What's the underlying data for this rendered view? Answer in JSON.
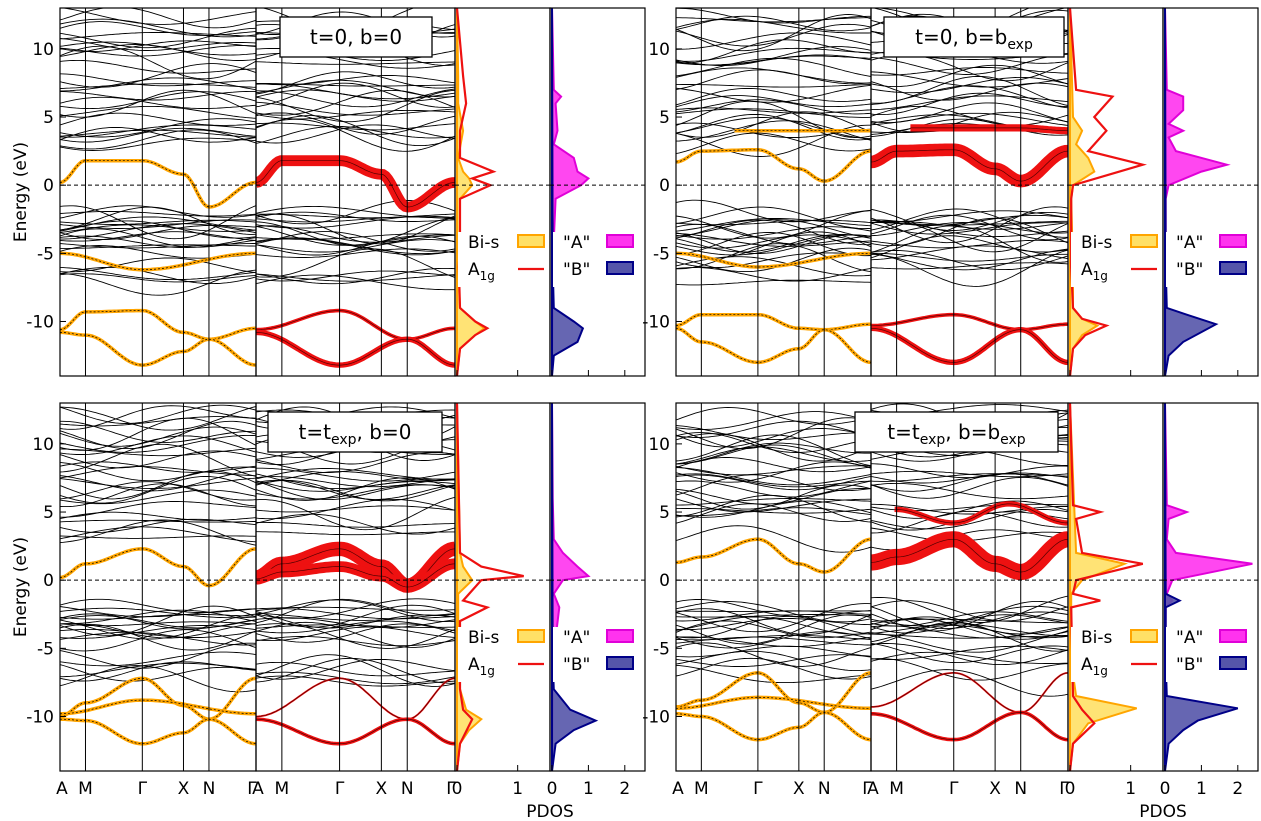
{
  "figure": {
    "ylabel": "Energy (eV)",
    "pdos_xlabel": "PDOS",
    "k_labels": [
      "A",
      "M",
      "Γ",
      "X",
      "N",
      "Γ"
    ],
    "k_positions": [
      0,
      0.13,
      0.42,
      0.63,
      0.76,
      1.0
    ],
    "energy_ticks": [
      -10,
      -5,
      0,
      5,
      10
    ],
    "energy_range": [
      -14,
      13
    ],
    "pdos1_ticks": [
      "0",
      "1"
    ],
    "pdos2_ticks": [
      "0",
      "1",
      "2"
    ],
    "legend": {
      "bi_s": "Bi-s",
      "a1g_main": "A",
      "a1g_sub": "1g",
      "a_site": "\"A\"",
      "b_site": "\"B\""
    },
    "colors": {
      "bi_s_line": "#ffa500",
      "bi_s_fill": "#ffe066",
      "a1g": "#ee1111",
      "a_site": "#ff33ee",
      "a_site_edge": "#e000d8",
      "b_site": "#5555aa",
      "b_site_edge": "#000088",
      "bands": "#000000"
    }
  },
  "chart_data": [
    {
      "type": "line",
      "panel": "top-left",
      "label_main": "t=0, b=0",
      "label": "t=0, b=0",
      "label_parts": [
        "t=0, b=0"
      ],
      "ylim": [
        -14,
        13
      ],
      "orange_bands": [
        {
          "k": [
            0,
            0.13,
            0.42,
            0.63,
            0.76,
            1.0
          ],
          "e": [
            0.2,
            1.8,
            1.8,
            0.8,
            -1.6,
            0.2
          ]
        },
        {
          "k": [
            0,
            0.13,
            0.42,
            0.63,
            0.76,
            1.0
          ],
          "e": [
            -10.6,
            -9.3,
            -9.2,
            -10.8,
            -11.3,
            -10.5
          ]
        },
        {
          "k": [
            0,
            0.13,
            0.42,
            0.63,
            0.76,
            1.0
          ],
          "e": [
            -10.8,
            -11.0,
            -13.2,
            -12.2,
            -11.3,
            -13.2
          ]
        },
        {
          "k": [
            0,
            0.42,
            1.0
          ],
          "e": [
            -5.0,
            -6.2,
            -5.0
          ]
        }
      ],
      "red_band_weight": [
        {
          "k": [
            0,
            0.13,
            0.42,
            0.63,
            0.76,
            1.0
          ],
          "e": [
            0.2,
            1.8,
            1.8,
            0.8,
            -1.6,
            0.2
          ],
          "w": 6
        },
        {
          "k": [
            0,
            0.42,
            0.76,
            1.0
          ],
          "e": [
            -10.6,
            -9.2,
            -11.3,
            -10.5
          ],
          "w": 2
        },
        {
          "k": [
            0,
            0.42,
            0.76,
            1.0
          ],
          "e": [
            -10.8,
            -13.2,
            -11.3,
            -13.2
          ],
          "w": 3
        }
      ],
      "pdos_bi_s": {
        "energy": [
          -14,
          -12,
          -11,
          -10.5,
          -10,
          -9,
          -6,
          -4,
          -1,
          0,
          0.5,
          1,
          2,
          4,
          6,
          8,
          13
        ],
        "value": [
          0,
          0.05,
          0.3,
          0.45,
          0.3,
          0.05,
          0.02,
          0.05,
          0.05,
          0.25,
          0.2,
          0.1,
          0.02,
          0.1,
          0.02,
          0.02,
          0
        ]
      },
      "pdos_a1g": {
        "energy": [
          -14,
          -12,
          -11,
          -10.5,
          -10,
          -9,
          -6,
          -4,
          -1,
          0,
          0.5,
          1,
          2,
          4,
          6,
          8,
          13
        ],
        "value": [
          0,
          0.05,
          0.3,
          0.5,
          0.3,
          0.05,
          0.03,
          0.05,
          0.05,
          0.55,
          0.25,
          0.6,
          0.05,
          0.05,
          0.15,
          0.1,
          0
        ]
      },
      "pdos_a": {
        "energy": [
          -14,
          -6,
          -4,
          -1,
          0,
          0.5,
          1,
          2,
          3,
          4,
          6,
          6.5,
          7,
          13
        ],
        "value": [
          0,
          0.02,
          0.05,
          0.1,
          0.8,
          1.0,
          0.7,
          0.6,
          0.05,
          0.15,
          0.1,
          0.25,
          0.05,
          0
        ]
      },
      "pdos_b": {
        "energy": [
          -14,
          -12.5,
          -11.5,
          -10.5,
          -10,
          -9,
          -6,
          13
        ],
        "value": [
          0,
          0.05,
          0.7,
          0.85,
          0.6,
          0.05,
          0.02,
          0
        ]
      }
    },
    {
      "type": "line",
      "panel": "top-right",
      "label_main": "t=0, b=b",
      "label": "t=0, b=bexp",
      "label_parts": [
        "t=0, b=b",
        "exp"
      ],
      "ylim": [
        -14,
        13
      ],
      "orange_bands": [
        {
          "k": [
            0,
            0.13,
            0.42,
            0.63,
            0.76,
            1.0
          ],
          "e": [
            1.7,
            2.5,
            2.6,
            1.2,
            0.3,
            2.5
          ]
        },
        {
          "k": [
            0,
            0.13,
            0.42,
            0.63,
            0.76,
            1.0
          ],
          "e": [
            -10.3,
            -9.5,
            -9.5,
            -10.5,
            -10.6,
            -10.2
          ]
        },
        {
          "k": [
            0,
            0.13,
            0.42,
            0.63,
            0.76,
            1.0
          ],
          "e": [
            -10.5,
            -11.5,
            -13.0,
            -12.0,
            -10.6,
            -13.0
          ]
        },
        {
          "k": [
            0,
            0.42,
            1.0
          ],
          "e": [
            -5.0,
            -6.0,
            -5.0
          ]
        },
        {
          "k": [
            0.3,
            0.42,
            1.0
          ],
          "e": [
            4.0,
            4.0,
            4.0
          ]
        }
      ],
      "red_band_weight": [
        {
          "k": [
            0,
            0.13,
            0.42,
            0.63,
            0.76,
            1.0
          ],
          "e": [
            1.7,
            2.5,
            2.6,
            1.2,
            0.3,
            2.5
          ],
          "w": 7
        },
        {
          "k": [
            0.2,
            0.42,
            0.76,
            1.0
          ],
          "e": [
            4.2,
            4.2,
            4.2,
            4.0
          ],
          "w": 4
        },
        {
          "k": [
            0,
            0.42,
            0.76,
            1.0
          ],
          "e": [
            -10.3,
            -9.5,
            -10.6,
            -10.2
          ],
          "w": 2
        },
        {
          "k": [
            0,
            0.42,
            0.76,
            1.0
          ],
          "e": [
            -10.5,
            -13.0,
            -10.6,
            -13.0
          ],
          "w": 3
        }
      ],
      "pdos_bi_s": {
        "energy": [
          -14,
          -12,
          -11,
          -10.3,
          -9.8,
          -9,
          -6,
          -1,
          0,
          1,
          2,
          3,
          4,
          5,
          13
        ],
        "value": [
          0,
          0.05,
          0.2,
          0.45,
          0.2,
          0.05,
          0.05,
          0.02,
          0.05,
          0.4,
          0.3,
          0.1,
          0.2,
          0.05,
          0
        ]
      },
      "pdos_a1g": {
        "energy": [
          -14,
          -12,
          -11,
          -10.3,
          -9.8,
          -9,
          -6,
          -1,
          0,
          1.5,
          2.5,
          4,
          5,
          6.5,
          7,
          13
        ],
        "value": [
          0,
          0.05,
          0.25,
          0.6,
          0.2,
          0.05,
          0.02,
          0.02,
          0.05,
          1.2,
          0.3,
          0.6,
          0.4,
          0.7,
          0.1,
          0
        ]
      },
      "pdos_a": {
        "energy": [
          -14,
          -6,
          -1,
          0,
          1,
          1.5,
          2.5,
          3.5,
          4,
          4.5,
          5.5,
          6.5,
          7,
          13
        ],
        "value": [
          0,
          0.02,
          0.02,
          0.1,
          1.0,
          1.7,
          0.3,
          0.1,
          0.5,
          0.1,
          0.5,
          0.5,
          0.05,
          0
        ]
      },
      "pdos_b": {
        "energy": [
          -14,
          -12.5,
          -11.5,
          -10.2,
          -9.5,
          -9,
          -6,
          13
        ],
        "value": [
          0,
          0.1,
          0.5,
          1.4,
          0.6,
          0.05,
          0.02,
          0
        ]
      }
    },
    {
      "type": "line",
      "panel": "bottom-left",
      "label_main": "t=t",
      "label": "t=texp, b=0",
      "label_parts": [
        "t=t",
        "exp",
        ", b=0"
      ],
      "ylim": [
        -14,
        13
      ],
      "orange_bands": [
        {
          "k": [
            0,
            0.13,
            0.42,
            0.63,
            0.76,
            1.0
          ],
          "e": [
            0.2,
            1.2,
            2.3,
            1.0,
            -0.4,
            2.3
          ]
        },
        {
          "k": [
            0,
            0.13,
            0.42,
            0.63,
            0.76,
            1.0
          ],
          "e": [
            -10.0,
            -9.0,
            -7.2,
            -9.2,
            -10.2,
            -7.2
          ]
        },
        {
          "k": [
            0,
            0.13,
            0.42,
            0.63,
            0.76,
            1.0
          ],
          "e": [
            -10.2,
            -10.3,
            -12.0,
            -11.2,
            -10.2,
            -12.0
          ]
        },
        {
          "k": [
            0,
            0.42,
            1.0
          ],
          "e": [
            -9.8,
            -8.8,
            -9.8
          ]
        }
      ],
      "red_band_weight": [
        {
          "k": [
            0,
            0.13,
            0.42,
            0.63,
            0.76,
            1.0
          ],
          "e": [
            0.2,
            1.2,
            2.3,
            1.0,
            -0.4,
            2.3
          ],
          "w": 8
        },
        {
          "k": [
            0,
            0.13,
            0.42,
            0.63,
            0.76,
            1.0
          ],
          "e": [
            0.1,
            0.6,
            1.0,
            0.3,
            -0.5,
            1.2
          ],
          "w": 6
        },
        {
          "k": [
            0,
            0.42,
            0.76,
            1.0
          ],
          "e": [
            -10.0,
            -7.2,
            -10.2,
            -7.2
          ],
          "w": 1
        },
        {
          "k": [
            0,
            0.42,
            0.76,
            1.0
          ],
          "e": [
            -10.2,
            -12.0,
            -10.2,
            -12.0
          ],
          "w": 2
        }
      ],
      "pdos_bi_s": {
        "energy": [
          -14,
          -12,
          -11,
          -10.2,
          -9.5,
          -8,
          -6,
          -1,
          0,
          1,
          2,
          13
        ],
        "value": [
          0,
          0.05,
          0.2,
          0.4,
          0.15,
          0.05,
          0.02,
          0.02,
          0.25,
          0.1,
          0.05,
          0
        ]
      },
      "pdos_a1g": {
        "energy": [
          -14,
          -12,
          -10.2,
          -9.5,
          -8,
          -3,
          -2,
          -1.5,
          0,
          0.3,
          1,
          2,
          13
        ],
        "value": [
          0,
          0.05,
          0.25,
          0.1,
          0.05,
          0.05,
          0.5,
          0.1,
          0.4,
          1.1,
          0.4,
          0.05,
          0
        ]
      },
      "pdos_a": {
        "energy": [
          -14,
          -6,
          -2,
          -1,
          0,
          0.3,
          1,
          2,
          3,
          6,
          13
        ],
        "value": [
          0,
          0.02,
          0.2,
          0.05,
          0.3,
          1.0,
          0.7,
          0.3,
          0.05,
          0.02,
          0
        ]
      },
      "pdos_b": {
        "energy": [
          -14,
          -12,
          -11,
          -10.3,
          -9.5,
          -8,
          -6,
          13
        ],
        "value": [
          0,
          0.1,
          0.6,
          1.2,
          0.5,
          0.05,
          0.02,
          0
        ]
      }
    },
    {
      "type": "line",
      "panel": "bottom-right",
      "label_main": "t=t",
      "label": "t=texp, b=bexp",
      "label_parts": [
        "t=t",
        "exp",
        ", b=b",
        "exp"
      ],
      "ylim": [
        -14,
        13
      ],
      "orange_bands": [
        {
          "k": [
            0,
            0.13,
            0.42,
            0.63,
            0.76,
            1.0
          ],
          "e": [
            1.3,
            1.7,
            3.0,
            1.2,
            0.6,
            3.0
          ]
        },
        {
          "k": [
            0,
            0.13,
            0.42,
            0.63,
            0.76,
            1.0
          ],
          "e": [
            -9.3,
            -8.8,
            -6.8,
            -9.0,
            -9.7,
            -6.8
          ]
        },
        {
          "k": [
            0,
            0.13,
            0.42,
            0.63,
            0.76,
            1.0
          ],
          "e": [
            -9.8,
            -10.0,
            -11.7,
            -10.8,
            -9.7,
            -11.7
          ]
        },
        {
          "k": [
            0,
            0.42,
            1.0
          ],
          "e": [
            -9.4,
            -8.6,
            -9.4
          ]
        }
      ],
      "red_band_weight": [
        {
          "k": [
            0,
            0.13,
            0.42,
            0.63,
            0.76,
            1.0
          ],
          "e": [
            1.3,
            1.7,
            3.0,
            1.2,
            0.6,
            3.0
          ],
          "w": 9
        },
        {
          "k": [
            0.12,
            0.42,
            0.7,
            1.0
          ],
          "e": [
            5.2,
            4.2,
            5.6,
            4.2
          ],
          "w": 3
        },
        {
          "k": [
            0,
            0.42,
            0.76,
            1.0
          ],
          "e": [
            -9.3,
            -6.8,
            -9.7,
            -6.8
          ],
          "w": 1
        },
        {
          "k": [
            0,
            0.42,
            0.76,
            1.0
          ],
          "e": [
            -9.8,
            -11.7,
            -9.7,
            -11.7
          ],
          "w": 2
        }
      ],
      "pdos_bi_s": {
        "energy": [
          -14,
          -12,
          -10.5,
          -9.4,
          -8.5,
          -6,
          -1,
          0,
          1.2,
          2,
          13
        ],
        "value": [
          0,
          0.05,
          0.3,
          1.1,
          0.1,
          0.02,
          0.02,
          0.2,
          0.9,
          0.1,
          0
        ]
      },
      "pdos_a1g": {
        "energy": [
          -14,
          -12,
          -10.5,
          -9.5,
          -8.5,
          -2,
          -1.5,
          -1,
          0,
          1.2,
          2,
          4.5,
          5,
          5.5,
          13
        ],
        "value": [
          0,
          0.05,
          0.4,
          0.2,
          0.05,
          0.02,
          0.5,
          0.05,
          0.1,
          1.2,
          0.2,
          0.1,
          0.5,
          0.05,
          0
        ]
      },
      "pdos_a": {
        "energy": [
          -14,
          -2,
          -1.5,
          -1,
          0,
          1.2,
          2,
          3,
          4.5,
          5,
          5.5,
          13
        ],
        "value": [
          0,
          0.02,
          0.2,
          0.05,
          0.2,
          2.4,
          0.3,
          0.05,
          0.1,
          0.6,
          0.05,
          0
        ]
      },
      "pdos_b": {
        "energy": [
          -14,
          -12,
          -11,
          -10.3,
          -9.4,
          -8.5,
          -6,
          -2,
          -1.5,
          -1,
          13
        ],
        "value": [
          0,
          0.1,
          0.5,
          0.9,
          2.0,
          0.05,
          0.02,
          0.02,
          0.4,
          0.02,
          0
        ]
      }
    }
  ]
}
